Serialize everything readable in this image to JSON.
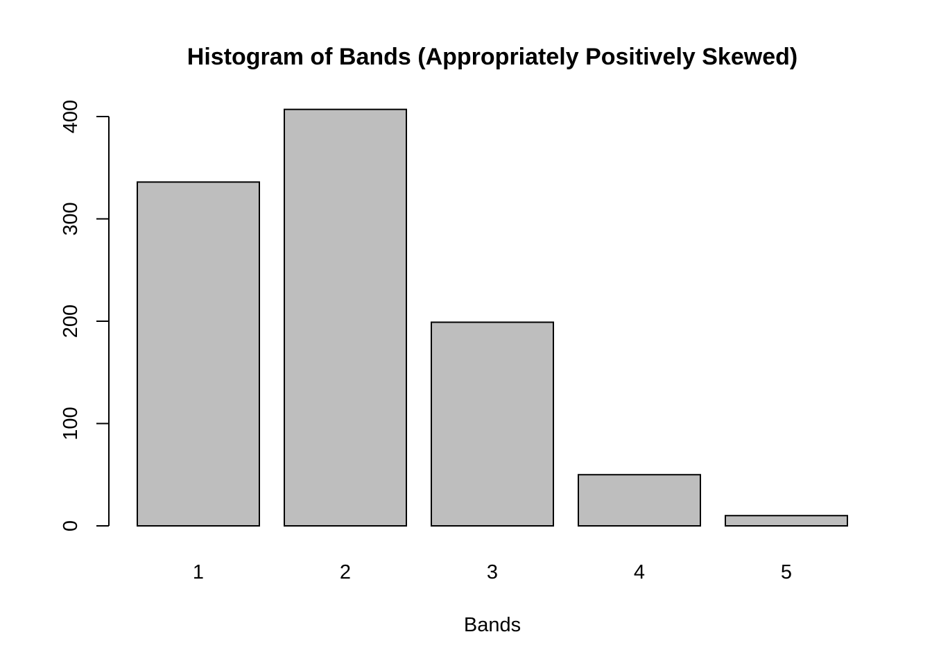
{
  "chart_data": {
    "type": "bar",
    "title": "Histogram of Bands (Appropriately Positively Skewed)",
    "xlabel": "Bands",
    "ylabel": "",
    "categories": [
      "1",
      "2",
      "3",
      "4",
      "5"
    ],
    "values": [
      336,
      407,
      199,
      50,
      10
    ],
    "ylim": [
      0,
      400
    ],
    "yticks": [
      0,
      100,
      200,
      300,
      400
    ],
    "bar_color": "#bebebe",
    "edge_color": "#000000",
    "grid": false,
    "legend": "none"
  }
}
